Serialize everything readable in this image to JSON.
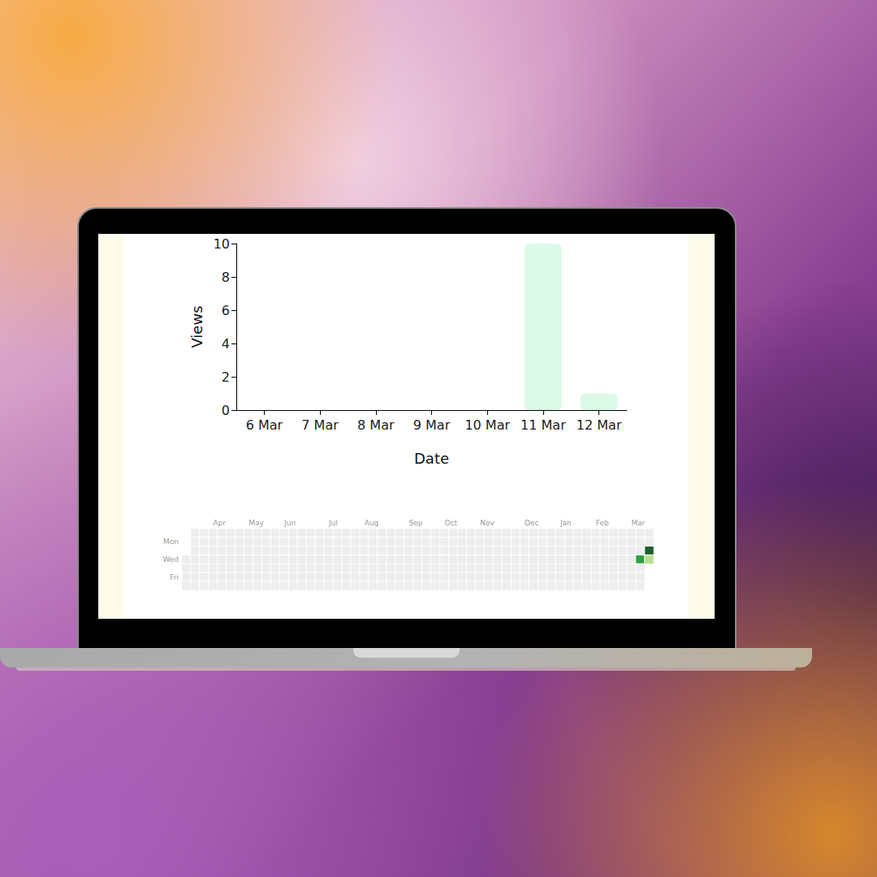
{
  "chart_data": [
    {
      "type": "bar",
      "x_label": "Date",
      "y_label": "Views",
      "categories": [
        "6 Mar",
        "7 Mar",
        "8 Mar",
        "9 Mar",
        "10 Mar",
        "11 Mar",
        "12 Mar"
      ],
      "values": [
        0,
        0,
        0,
        0,
        0,
        10,
        1
      ],
      "color": "#dcf9e8",
      "ylim": [
        0,
        10
      ],
      "yticks": [
        0,
        2,
        4,
        6,
        8,
        10
      ],
      "grid": false
    },
    {
      "type": "heatmap",
      "categories": [
        null,
        null,
        null,
        "Apr",
        null,
        null,
        null,
        "May",
        null,
        null,
        null,
        "Jun",
        null,
        null,
        null,
        null,
        "Jul",
        null,
        null,
        null,
        "Aug",
        null,
        null,
        null,
        null,
        "Sep",
        null,
        null,
        null,
        "Oct",
        null,
        null,
        null,
        "Nov",
        null,
        null,
        null,
        null,
        "Dec",
        null,
        null,
        null,
        "Jan",
        null,
        null,
        null,
        "Feb",
        null,
        null,
        null,
        "Mar",
        null,
        null
      ],
      "rows": [
        null,
        "Mon",
        null,
        "Wed",
        null,
        "Fri",
        null
      ],
      "values": [
        [
          null,
          0,
          0,
          0,
          0,
          0,
          0,
          0,
          0,
          0,
          0,
          0,
          0,
          0,
          0,
          0,
          0,
          0,
          0,
          0,
          0,
          0,
          0,
          0,
          0,
          0,
          0,
          0,
          0,
          0,
          0,
          0,
          0,
          0,
          0,
          0,
          0,
          0,
          0,
          0,
          0,
          0,
          0,
          0,
          0,
          0,
          0,
          0,
          0,
          0,
          0,
          0,
          0
        ],
        [
          null,
          0,
          0,
          0,
          0,
          0,
          0,
          0,
          0,
          0,
          0,
          0,
          0,
          0,
          0,
          0,
          0,
          0,
          0,
          0,
          0,
          0,
          0,
          0,
          0,
          0,
          0,
          0,
          0,
          0,
          0,
          0,
          0,
          0,
          0,
          0,
          0,
          0,
          0,
          0,
          0,
          0,
          0,
          0,
          0,
          0,
          0,
          0,
          0,
          0,
          0,
          0,
          0
        ],
        [
          null,
          0,
          0,
          0,
          0,
          0,
          0,
          0,
          0,
          0,
          0,
          0,
          0,
          0,
          0,
          0,
          0,
          0,
          0,
          0,
          0,
          0,
          0,
          0,
          0,
          0,
          0,
          0,
          0,
          0,
          0,
          0,
          0,
          0,
          0,
          0,
          0,
          0,
          0,
          0,
          0,
          0,
          0,
          0,
          0,
          0,
          0,
          0,
          0,
          0,
          0,
          0,
          10
        ],
        [
          0,
          0,
          0,
          0,
          0,
          0,
          0,
          0,
          0,
          0,
          0,
          0,
          0,
          0,
          0,
          0,
          0,
          0,
          0,
          0,
          0,
          0,
          0,
          0,
          0,
          0,
          0,
          0,
          0,
          0,
          0,
          0,
          0,
          0,
          0,
          0,
          0,
          0,
          0,
          0,
          0,
          0,
          0,
          0,
          0,
          0,
          0,
          0,
          0,
          0,
          0,
          5,
          1
        ],
        [
          0,
          0,
          0,
          0,
          0,
          0,
          0,
          0,
          0,
          0,
          0,
          0,
          0,
          0,
          0,
          0,
          0,
          0,
          0,
          0,
          0,
          0,
          0,
          0,
          0,
          0,
          0,
          0,
          0,
          0,
          0,
          0,
          0,
          0,
          0,
          0,
          0,
          0,
          0,
          0,
          0,
          0,
          0,
          0,
          0,
          0,
          0,
          0,
          0,
          0,
          0,
          0,
          null
        ],
        [
          0,
          0,
          0,
          0,
          0,
          0,
          0,
          0,
          0,
          0,
          0,
          0,
          0,
          0,
          0,
          0,
          0,
          0,
          0,
          0,
          0,
          0,
          0,
          0,
          0,
          0,
          0,
          0,
          0,
          0,
          0,
          0,
          0,
          0,
          0,
          0,
          0,
          0,
          0,
          0,
          0,
          0,
          0,
          0,
          0,
          0,
          0,
          0,
          0,
          0,
          0,
          0,
          null
        ],
        [
          0,
          0,
          0,
          0,
          0,
          0,
          0,
          0,
          0,
          0,
          0,
          0,
          0,
          0,
          0,
          0,
          0,
          0,
          0,
          0,
          0,
          0,
          0,
          0,
          0,
          0,
          0,
          0,
          0,
          0,
          0,
          0,
          0,
          0,
          0,
          0,
          0,
          0,
          0,
          0,
          0,
          0,
          0,
          0,
          0,
          0,
          0,
          0,
          0,
          0,
          0,
          0,
          null
        ]
      ],
      "color_range": [
        0,
        10
      ],
      "grid": false
    }
  ]
}
